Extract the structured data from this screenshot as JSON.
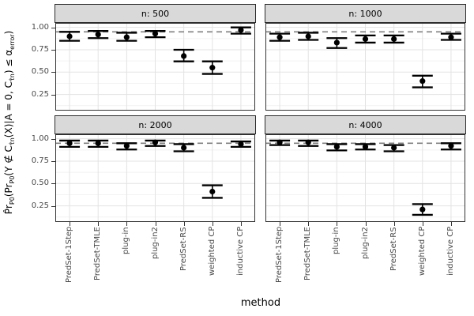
{
  "chart_data": {
    "type": "faceted-pointrange",
    "facet_variable": "n",
    "xlabel": "method",
    "ylabel_plain": "Pr̂_P0( Pr_P0( Y ∉ C_τ̂n(X) | A = 0, C_τ̂n ) ≤ α_error )",
    "ylabel_segments": [
      {
        "t": "P̂r"
      },
      {
        "t": "P0",
        "sub": true
      },
      {
        "t": "("
      },
      {
        "t": "Pr"
      },
      {
        "t": "P0",
        "sub": true
      },
      {
        "t": "(Y ∉ C"
      },
      {
        "t": "τ̂n",
        "sub": true
      },
      {
        "t": "(X)|A = 0, C"
      },
      {
        "t": "τ̂n",
        "sub": true
      },
      {
        "t": ") ≤ α"
      },
      {
        "t": "error",
        "sub": true
      },
      {
        "t": ")"
      }
    ],
    "methods": [
      "PredSet-1Step",
      "PredSet-TMLE",
      "plug-in",
      "plug-in2",
      "PredSet-RS",
      "weighted CP",
      "inductive CP"
    ],
    "y_ticks": [
      1.0,
      0.75,
      0.5,
      0.25
    ],
    "y_tick_labels": [
      "1.00",
      "0.75",
      "0.50",
      "0.25"
    ],
    "y_minor_ticks": [
      0.875,
      0.625,
      0.375,
      0.125
    ],
    "ylim": [
      0.07,
      1.05
    ],
    "reference_line": {
      "y": 0.95,
      "style": "dashed",
      "color": "#7f7f7f"
    },
    "grid": true,
    "legend": "none",
    "facets": [
      {
        "label": "n: 500",
        "values": [
          {
            "method": "PredSet-1Step",
            "estimate": 0.9,
            "lower": 0.85,
            "upper": 0.95
          },
          {
            "method": "PredSet-TMLE",
            "estimate": 0.92,
            "lower": 0.88,
            "upper": 0.96
          },
          {
            "method": "plug-in",
            "estimate": 0.89,
            "lower": 0.85,
            "upper": 0.94
          },
          {
            "method": "plug-in2",
            "estimate": 0.93,
            "lower": 0.89,
            "upper": 0.96
          },
          {
            "method": "PredSet-RS",
            "estimate": 0.68,
            "lower": 0.62,
            "upper": 0.75
          },
          {
            "method": "weighted CP",
            "estimate": 0.55,
            "lower": 0.48,
            "upper": 0.62
          },
          {
            "method": "inductive CP",
            "estimate": 0.97,
            "lower": 0.93,
            "upper": 1.0
          }
        ]
      },
      {
        "label": "n: 1000",
        "values": [
          {
            "method": "PredSet-1Step",
            "estimate": 0.89,
            "lower": 0.85,
            "upper": 0.93
          },
          {
            "method": "PredSet-TMLE",
            "estimate": 0.9,
            "lower": 0.86,
            "upper": 0.94
          },
          {
            "method": "plug-in",
            "estimate": 0.83,
            "lower": 0.77,
            "upper": 0.88
          },
          {
            "method": "plug-in2",
            "estimate": 0.87,
            "lower": 0.83,
            "upper": 0.91
          },
          {
            "method": "PredSet-RS",
            "estimate": 0.87,
            "lower": 0.83,
            "upper": 0.91
          },
          {
            "method": "weighted CP",
            "estimate": 0.4,
            "lower": 0.33,
            "upper": 0.46
          },
          {
            "method": "inductive CP",
            "estimate": 0.89,
            "lower": 0.86,
            "upper": 0.93
          }
        ]
      },
      {
        "label": "n: 2000",
        "values": [
          {
            "method": "PredSet-1Step",
            "estimate": 0.95,
            "lower": 0.91,
            "upper": 0.98
          },
          {
            "method": "PredSet-TMLE",
            "estimate": 0.95,
            "lower": 0.91,
            "upper": 0.98
          },
          {
            "method": "plug-in",
            "estimate": 0.92,
            "lower": 0.88,
            "upper": 0.95
          },
          {
            "method": "plug-in2",
            "estimate": 0.96,
            "lower": 0.92,
            "upper": 0.98
          },
          {
            "method": "PredSet-RS",
            "estimate": 0.9,
            "lower": 0.86,
            "upper": 0.94
          },
          {
            "method": "weighted CP",
            "estimate": 0.41,
            "lower": 0.34,
            "upper": 0.48
          },
          {
            "method": "inductive CP",
            "estimate": 0.94,
            "lower": 0.91,
            "upper": 0.97
          }
        ]
      },
      {
        "label": "n: 4000",
        "values": [
          {
            "method": "PredSet-1Step",
            "estimate": 0.96,
            "lower": 0.93,
            "upper": 0.98
          },
          {
            "method": "PredSet-TMLE",
            "estimate": 0.96,
            "lower": 0.92,
            "upper": 0.98
          },
          {
            "method": "plug-in",
            "estimate": 0.91,
            "lower": 0.87,
            "upper": 0.94
          },
          {
            "method": "plug-in2",
            "estimate": 0.91,
            "lower": 0.88,
            "upper": 0.94
          },
          {
            "method": "PredSet-RS",
            "estimate": 0.9,
            "lower": 0.86,
            "upper": 0.93
          },
          {
            "method": "weighted CP",
            "estimate": 0.21,
            "lower": 0.15,
            "upper": 0.27
          },
          {
            "method": "inductive CP",
            "estimate": 0.92,
            "lower": 0.88,
            "upper": 0.95
          }
        ]
      }
    ],
    "colors": {
      "point": "#000000",
      "error_bar": "#000000",
      "reference_line": "#7f7f7f",
      "strip_fill": "#d9d9d9",
      "panel_border": "#333333",
      "grid_major": "#e3e3e3",
      "grid_minor": "#f2f2f2",
      "axis_text": "#4a4a4a"
    }
  }
}
